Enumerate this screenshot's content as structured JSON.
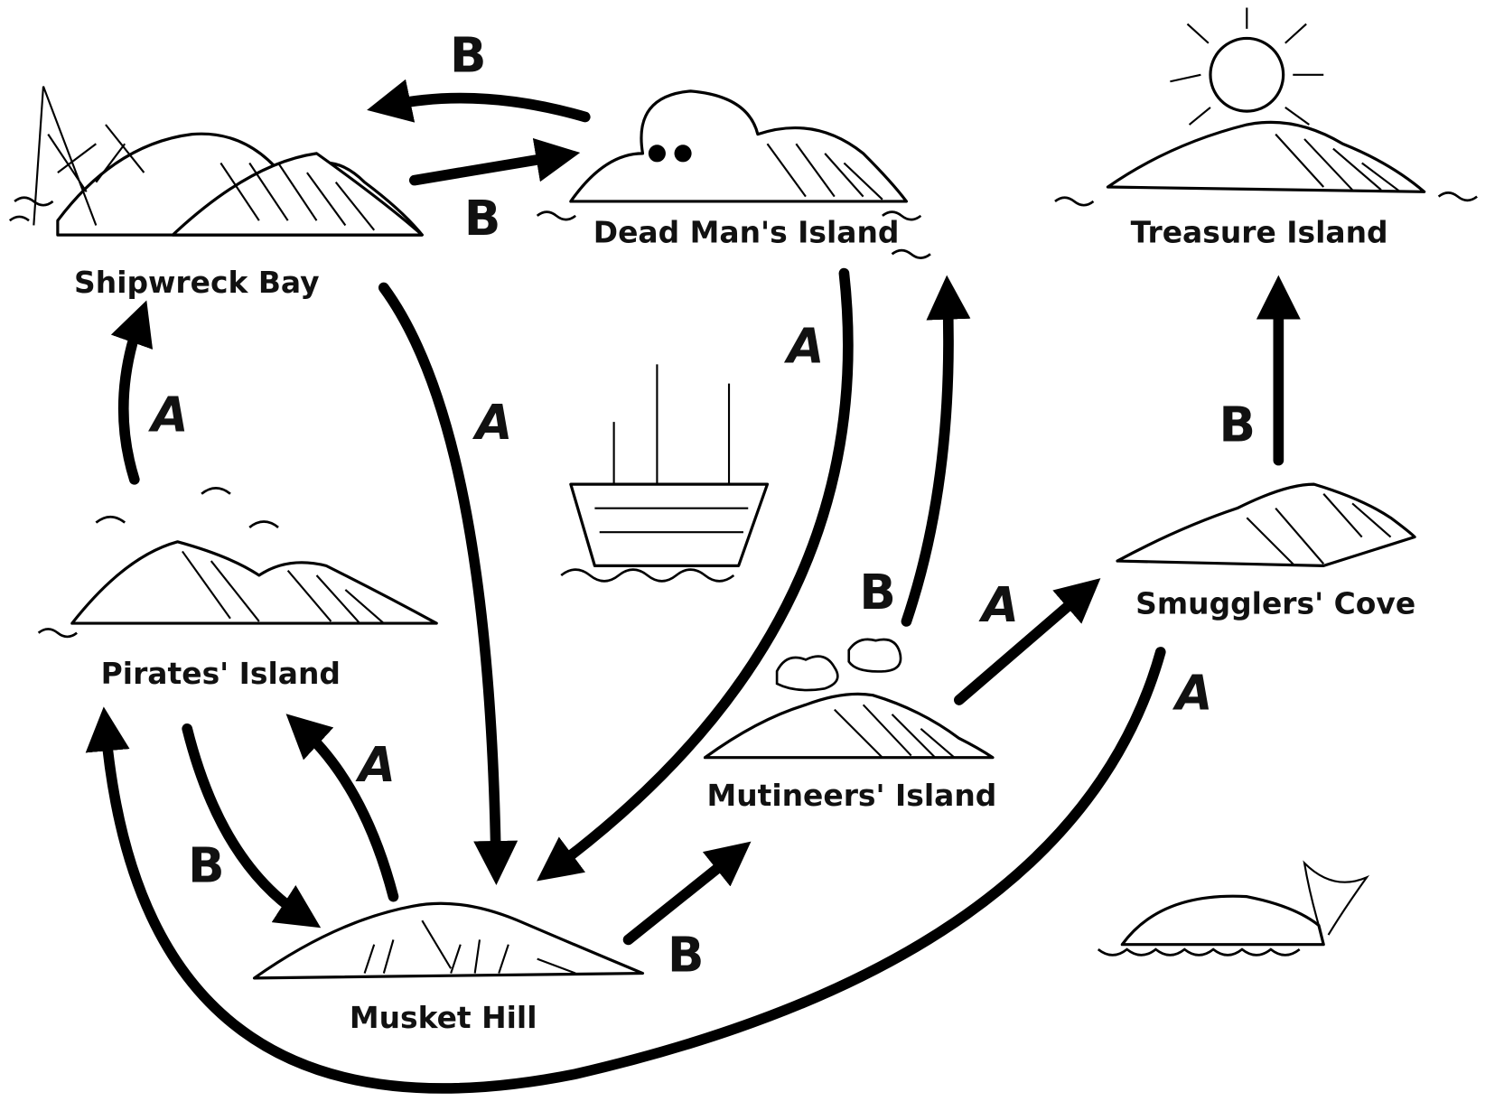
{
  "nodes": [
    {
      "label": "Shipwreck Bay"
    },
    {
      "label": "Dead Man's Island"
    },
    {
      "label": "Treasure Island"
    },
    {
      "label": "Pirates' Island"
    },
    {
      "label": "Musket Hill"
    },
    {
      "label": "Mutineers' Island"
    },
    {
      "label": "Smugglers' Cove"
    }
  ],
  "edges": [
    {
      "from": "Dead Man's Island",
      "to": "Shipwreck Bay",
      "label": "B"
    },
    {
      "from": "Shipwreck Bay",
      "to": "Dead Man's Island",
      "label": "B"
    },
    {
      "from": "Shipwreck Bay",
      "to": "Musket Hill",
      "label": "A"
    },
    {
      "from": "Dead Man's Island",
      "to": "Musket Hill",
      "label": "A"
    },
    {
      "from": "Mutineers' Island",
      "to": "Dead Man's Island",
      "label": "B"
    },
    {
      "from": "Pirates' Island",
      "to": "Shipwreck Bay",
      "label": "A"
    },
    {
      "from": "Smugglers' Cove",
      "to": "Treasure Island",
      "label": "B"
    },
    {
      "from": "Pirates' Island",
      "to": "Musket Hill",
      "label": "B"
    },
    {
      "from": "Musket Hill",
      "to": "Pirates' Island",
      "label": "A"
    },
    {
      "from": "Musket Hill",
      "to": "Mutineers' Island",
      "label": "B"
    },
    {
      "from": "Mutineers' Island",
      "to": "Smugglers' Cove",
      "label": "A"
    },
    {
      "from": "Smugglers' Cove",
      "to": "Pirates' Island",
      "label": "A"
    }
  ]
}
